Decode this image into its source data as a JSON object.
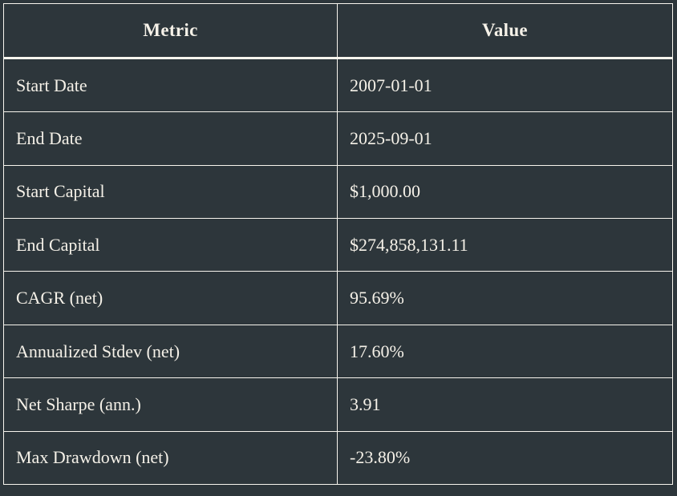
{
  "colors": {
    "background": "#2d363b",
    "text": "#f5f1e8",
    "border": "#f8f5ee"
  },
  "table": {
    "columns": [
      {
        "label": "Metric"
      },
      {
        "label": "Value"
      }
    ],
    "rows": [
      {
        "metric": "Start Date",
        "value": "2007-01-01"
      },
      {
        "metric": "End Date",
        "value": "2025-09-01"
      },
      {
        "metric": "Start Capital",
        "value": "$1,000.00"
      },
      {
        "metric": "End Capital",
        "value": "$274,858,131.11"
      },
      {
        "metric": "CAGR (net)",
        "value": "95.69%"
      },
      {
        "metric": "Annualized Stdev (net)",
        "value": "17.60%"
      },
      {
        "metric": "Net Sharpe (ann.)",
        "value": "3.91"
      },
      {
        "metric": "Max Drawdown (net)",
        "value": "-23.80%"
      }
    ]
  }
}
